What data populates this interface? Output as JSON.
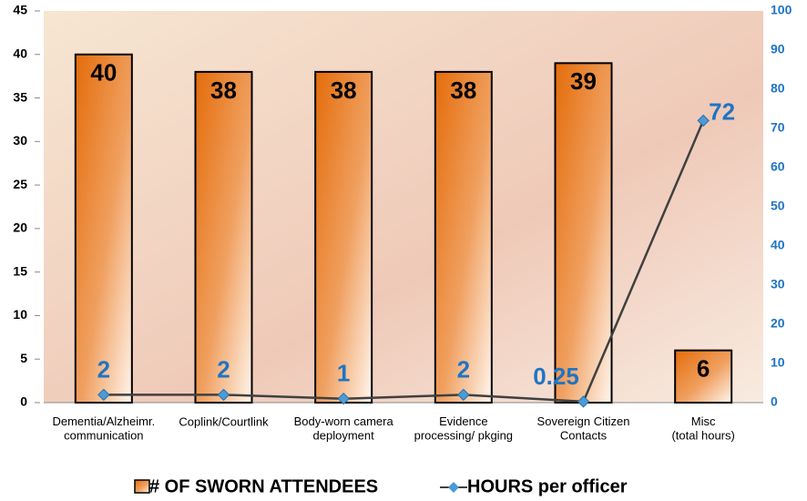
{
  "chart_data": {
    "type": "bar_line",
    "categories": [
      "Dementia/Alzheimr.\ncommunication",
      "Coplink/Courtlink",
      "Body-worn camera\ndeployment",
      "Evidence\nprocessing/ pkging",
      "Sovereign Citizen\nContacts",
      "Misc\n(total hours)"
    ],
    "series": [
      {
        "name": "# OF SWORN ATTENDEES",
        "type": "bar",
        "color": "#e46c0a",
        "values": [
          40,
          38,
          38,
          38,
          39,
          6
        ]
      },
      {
        "name": "HOURS per officer",
        "type": "line",
        "axis": "y2",
        "color": "#404040",
        "marker_color": "#4a9bd6",
        "label_color": "#1f74c4",
        "values": [
          2,
          2,
          1,
          2,
          0.25,
          72
        ]
      }
    ],
    "ylim": [
      0,
      45
    ],
    "yticks": [
      0,
      5,
      10,
      15,
      20,
      25,
      30,
      35,
      40,
      45
    ],
    "y2lim": [
      0,
      100
    ],
    "y2ticks": [
      0,
      10,
      20,
      30,
      40,
      50,
      60,
      70,
      80,
      90,
      100
    ],
    "legend": "bottom"
  }
}
